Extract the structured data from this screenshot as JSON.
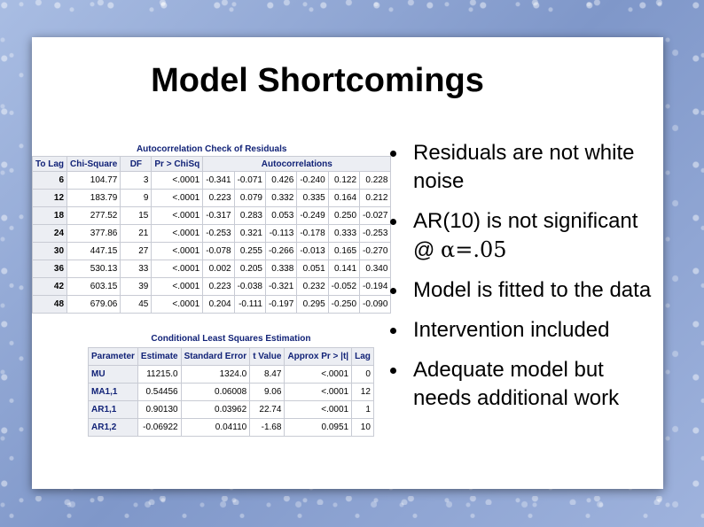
{
  "slide": {
    "title": "Model Shortcomings",
    "bullets": [
      {
        "text": "Residuals are not white noise"
      },
      {
        "text": "AR(10) is not significant @ ",
        "math": "α=.05"
      },
      {
        "text": "Model is fitted to the data"
      },
      {
        "text": "Intervention included"
      },
      {
        "text": "Adequate model but needs additional work"
      }
    ]
  },
  "acf_table": {
    "caption": "Autocorrelation Check of Residuals",
    "headers": [
      "To Lag",
      "Chi-Square",
      "DF",
      "Pr > ChiSq",
      "Autocorrelations"
    ],
    "rows": [
      [
        "6",
        "104.77",
        "3",
        "<.0001",
        "-0.341",
        "-0.071",
        "0.426",
        "-0.240",
        "0.122",
        "0.228"
      ],
      [
        "12",
        "183.79",
        "9",
        "<.0001",
        "0.223",
        "0.079",
        "0.332",
        "0.335",
        "0.164",
        "0.212"
      ],
      [
        "18",
        "277.52",
        "15",
        "<.0001",
        "-0.317",
        "0.283",
        "0.053",
        "-0.249",
        "0.250",
        "-0.027"
      ],
      [
        "24",
        "377.86",
        "21",
        "<.0001",
        "-0.253",
        "0.321",
        "-0.113",
        "-0.178",
        "0.333",
        "-0.253"
      ],
      [
        "30",
        "447.15",
        "27",
        "<.0001",
        "-0.078",
        "0.255",
        "-0.266",
        "-0.013",
        "0.165",
        "-0.270"
      ],
      [
        "36",
        "530.13",
        "33",
        "<.0001",
        "0.002",
        "0.205",
        "0.338",
        "0.051",
        "0.141",
        "0.340"
      ],
      [
        "42",
        "603.15",
        "39",
        "<.0001",
        "0.223",
        "-0.038",
        "-0.321",
        "0.232",
        "-0.052",
        "-0.194"
      ],
      [
        "48",
        "679.06",
        "45",
        "<.0001",
        "0.204",
        "-0.111",
        "-0.197",
        "0.295",
        "-0.250",
        "-0.090"
      ]
    ]
  },
  "cls_table": {
    "caption": "Conditional Least Squares Estimation",
    "headers": [
      "Parameter",
      "Estimate",
      "Standard Error",
      "t Value",
      "Approx Pr > |t|",
      "Lag"
    ],
    "rows": [
      [
        "MU",
        "11215.0",
        "1324.0",
        "8.47",
        "<.0001",
        "0"
      ],
      [
        "MA1,1",
        "0.54456",
        "0.06008",
        "9.06",
        "<.0001",
        "12"
      ],
      [
        "AR1,1",
        "0.90130",
        "0.03962",
        "22.74",
        "<.0001",
        "1"
      ],
      [
        "AR1,2",
        "-0.06922",
        "0.04110",
        "-1.68",
        "0.0951",
        "10"
      ]
    ]
  }
}
